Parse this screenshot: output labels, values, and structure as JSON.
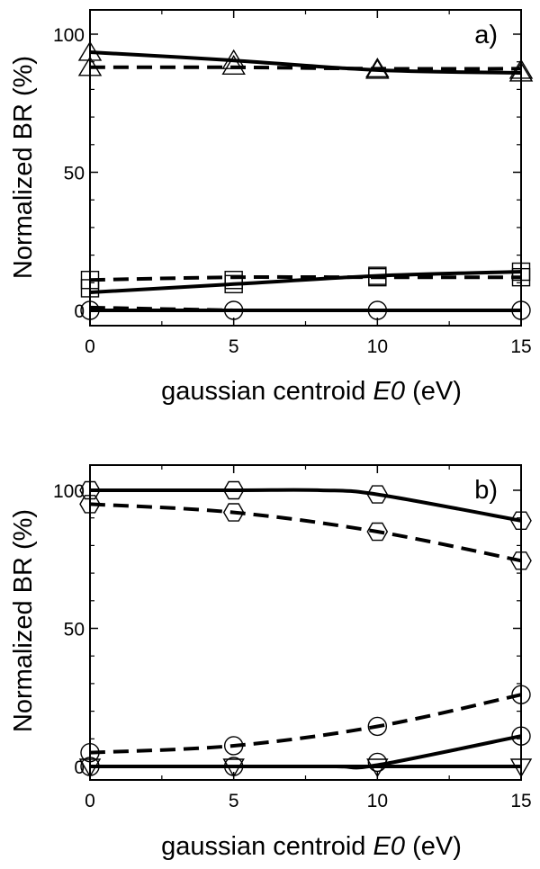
{
  "chart_data": [
    {
      "type": "line",
      "panel_label": "a)",
      "xlabel": "gaussian centroid",
      "xlabel_symbol": "E0",
      "xlabel_unit": "(eV)",
      "ylabel": "Normalized  BR (%)",
      "xlim": [
        0,
        15
      ],
      "ylim": [
        0,
        110
      ],
      "xticks": [
        0,
        5,
        10,
        15
      ],
      "yticks": [
        0,
        50,
        100
      ],
      "grid": false,
      "legend": "none",
      "series": [
        {
          "style": "solid",
          "x": [
            0,
            5,
            10,
            15
          ],
          "y": [
            93.5,
            90.5,
            87,
            86
          ],
          "marker": "triangle",
          "marker_y": [
            93.5,
            90.5,
            87,
            86
          ]
        },
        {
          "style": "dashed",
          "x": [
            0,
            5,
            10,
            15
          ],
          "y": [
            88,
            88,
            87.5,
            87.5
          ],
          "marker": "triangle",
          "marker_y": [
            88,
            88.5,
            87.5,
            87
          ]
        },
        {
          "style": "solid",
          "x": [
            0,
            5,
            10,
            15
          ],
          "y": [
            6.5,
            9.5,
            12.5,
            14
          ],
          "marker": "square",
          "marker_y": [
            8,
            9.5,
            12.5,
            14
          ]
        },
        {
          "style": "dashed",
          "x": [
            0,
            5,
            10,
            15
          ],
          "y": [
            11,
            12,
            12,
            12
          ],
          "marker": "square",
          "marker_y": [
            11,
            11,
            12,
            12
          ]
        },
        {
          "style": "solid",
          "x": [
            0,
            5,
            10,
            15
          ],
          "y": [
            0,
            0,
            0,
            0
          ],
          "marker": "circle",
          "marker_y": [
            0,
            0,
            0,
            0
          ]
        },
        {
          "style": "dashed",
          "x": [
            0,
            5
          ],
          "y": [
            1,
            0
          ],
          "marker": "none",
          "marker_y": []
        }
      ]
    },
    {
      "type": "line",
      "panel_label": "b)",
      "xlabel": "gaussian centroid",
      "xlabel_symbol": "E0",
      "xlabel_unit": "(eV)",
      "ylabel": "Normalized  BR (%)",
      "xlim": [
        0,
        15
      ],
      "ylim": [
        0,
        110
      ],
      "xticks": [
        0,
        5,
        10,
        15
      ],
      "yticks": [
        0,
        50,
        100
      ],
      "grid": false,
      "legend": "none",
      "series": [
        {
          "style": "solid",
          "x": [
            0,
            5,
            8,
            10,
            15
          ],
          "y": [
            100,
            100,
            100,
            98.5,
            89
          ],
          "marker": "hexagon",
          "marker_y": [
            100,
            100,
            null,
            98.5,
            89
          ]
        },
        {
          "style": "dashed",
          "x": [
            0,
            5,
            10,
            15
          ],
          "y": [
            95,
            92,
            85,
            74.5
          ],
          "marker": "hexagon",
          "marker_y": [
            95,
            92,
            85,
            74.5
          ]
        },
        {
          "style": "dashed",
          "x": [
            0,
            5,
            10,
            15
          ],
          "y": [
            5,
            7.5,
            14.5,
            26
          ],
          "marker": "circle",
          "marker_y": [
            5,
            7.5,
            14.5,
            26
          ]
        },
        {
          "style": "solid",
          "x": [
            0,
            5,
            8.5,
            10,
            15
          ],
          "y": [
            0,
            0,
            0,
            0.5,
            11
          ],
          "marker": "circle",
          "marker_y": [
            0,
            0,
            null,
            1.5,
            11
          ]
        },
        {
          "style": "solid",
          "x": [
            0,
            5,
            10,
            15
          ],
          "y": [
            0,
            0,
            0,
            0
          ],
          "marker": "triangle-down",
          "marker_y": [
            0,
            0,
            0,
            0
          ]
        }
      ]
    }
  ]
}
